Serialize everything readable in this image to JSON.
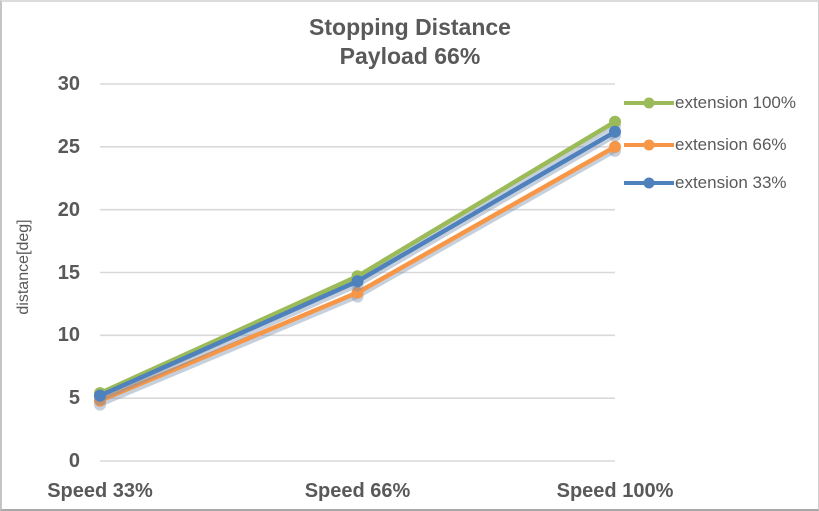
{
  "chart_data": {
    "type": "line",
    "title": "Stopping Distance Payload 66%",
    "title_lines": [
      "Stopping Distance",
      "Payload 66%"
    ],
    "categories": [
      "Speed 33%",
      "Speed 66%",
      "Speed 100%"
    ],
    "series": [
      {
        "name": "extension 100%",
        "color": "#9BBB59",
        "values": [
          5.4,
          14.7,
          27.0
        ]
      },
      {
        "name": "extension 66%",
        "color": "#F79646",
        "values": [
          4.8,
          13.4,
          25.0
        ]
      },
      {
        "name": "extension 33%",
        "color": "#4F81BD",
        "values": [
          5.2,
          14.3,
          26.2
        ]
      }
    ],
    "xlabel": "",
    "ylabel": "distance[deg]",
    "ylim": [
      0,
      30
    ],
    "yticks": [
      0,
      5,
      10,
      15,
      20,
      25,
      30
    ],
    "grid": true,
    "legend_position": "right",
    "text_color": "#595959",
    "gridline_color": "#D9D9D9",
    "shadow_color": "rgba(120,142,175,0.42)"
  }
}
